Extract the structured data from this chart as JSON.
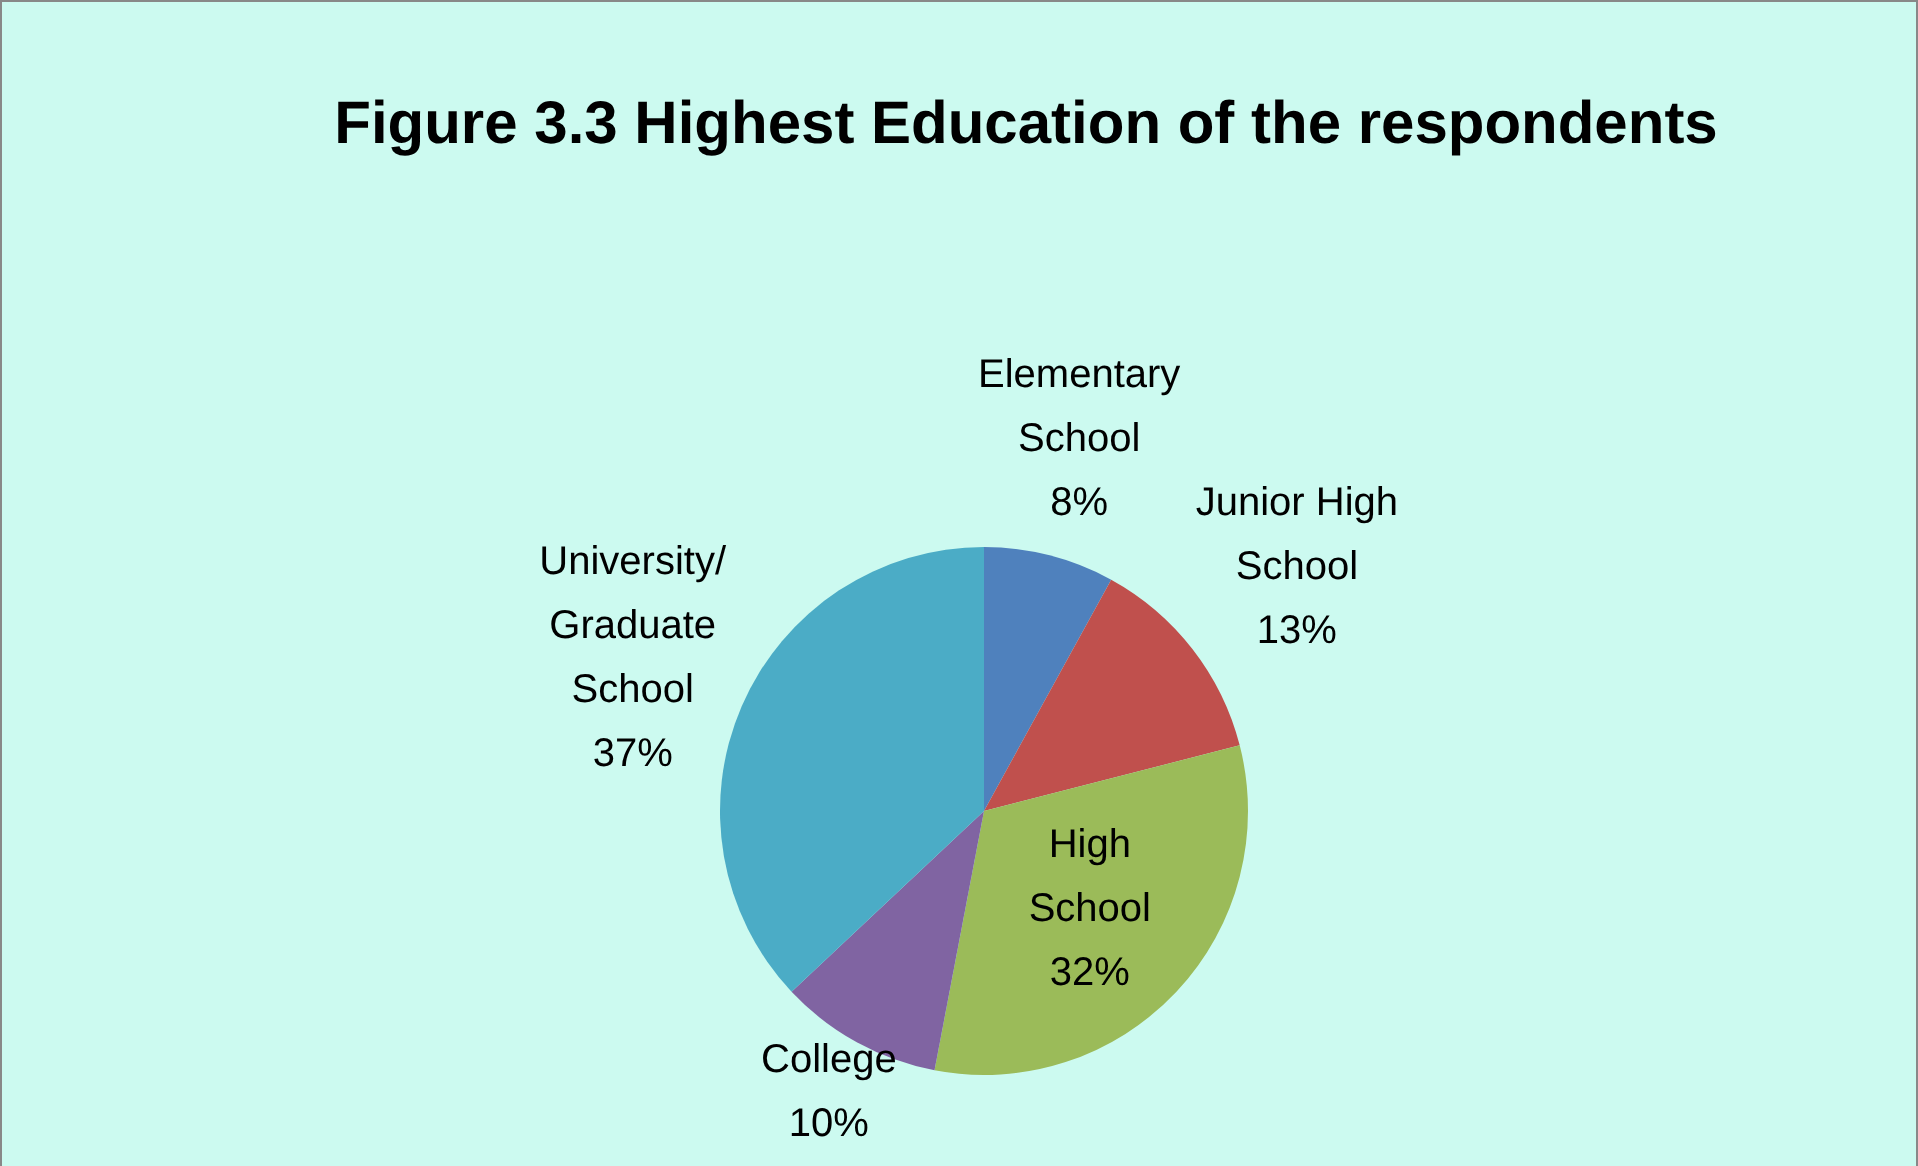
{
  "chart_data": {
    "type": "pie",
    "title": "Figure 3.3 Highest Education of the respondents",
    "categories": [
      "Elementary School",
      "Junior High School",
      "High School",
      "College",
      "University/ Graduate School"
    ],
    "values": [
      8,
      13,
      32,
      10,
      37
    ],
    "colors": [
      "#4f81bd",
      "#c0504d",
      "#9bbb59",
      "#8064a2",
      "#4bacc6"
    ],
    "value_labels": [
      "8%",
      "13%",
      "32%",
      "10%",
      "37%"
    ],
    "legend": false
  }
}
